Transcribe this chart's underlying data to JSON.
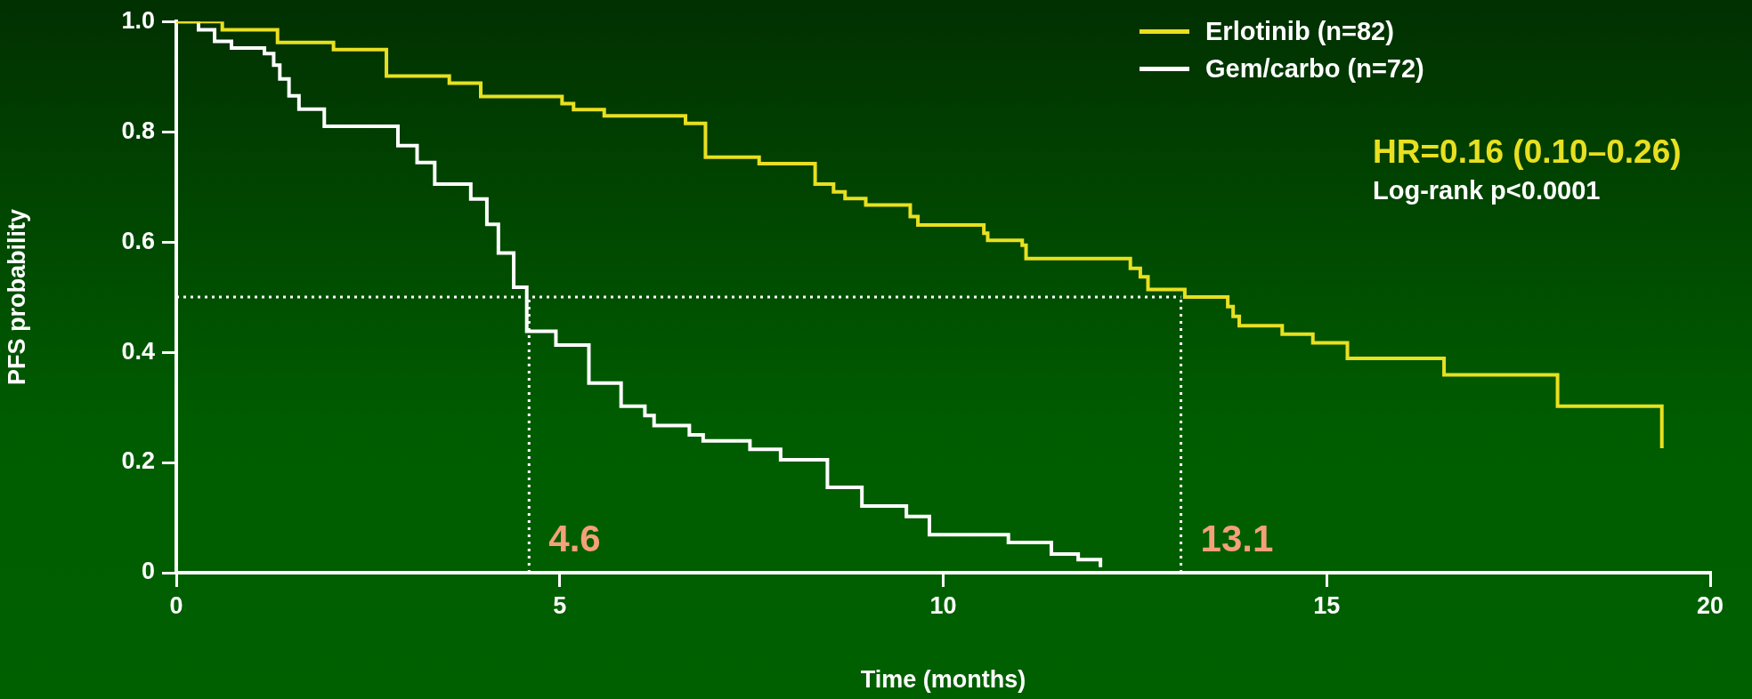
{
  "chart_data": {
    "type": "step",
    "xlabel": "Time (months)",
    "ylabel": "PFS probability",
    "xlim": [
      0,
      20
    ],
    "xticks": [
      0,
      5,
      10,
      15,
      20
    ],
    "ylim": [
      0,
      1
    ],
    "yticks": [
      0,
      0.2,
      0.4,
      0.6,
      0.8,
      {
        "value": 1,
        "label": "1.0"
      }
    ],
    "legend": "top right",
    "series": [
      {
        "name": "Erlotinib (n=82)",
        "color": "#e8e020",
        "x": [
          0,
          0.6,
          1.32,
          2.05,
          2.74,
          3.56,
          3.97,
          5.03,
          5.18,
          5.58,
          6.64,
          6.9,
          7.6,
          8.33,
          8.57,
          8.72,
          8.99,
          9.57,
          9.67,
          10.53,
          10.58,
          11.03,
          11.08,
          12.44,
          12.57,
          12.67,
          13.15,
          13.71,
          13.78,
          13.86,
          14.42,
          14.82,
          15.27,
          16.53,
          18.01,
          19.37
        ],
        "values": [
          1,
          0.985,
          0.962,
          0.949,
          0.901,
          0.888,
          0.864,
          0.851,
          0.84,
          0.829,
          0.815,
          0.754,
          0.742,
          0.705,
          0.691,
          0.679,
          0.667,
          0.646,
          0.631,
          0.616,
          0.603,
          0.594,
          0.57,
          0.552,
          0.537,
          0.514,
          0.5,
          0.483,
          0.465,
          0.448,
          0.433,
          0.417,
          0.389,
          0.359,
          0.302,
          0.226
        ]
      },
      {
        "name": "Gem/carbo (n=72)",
        "color": "#ffffff",
        "x": [
          0,
          0.29,
          0.5,
          0.72,
          1.15,
          1.27,
          1.35,
          1.47,
          1.6,
          1.93,
          2.89,
          3.14,
          3.37,
          3.84,
          4.05,
          4.2,
          4.4,
          4.57,
          4.95,
          5.38,
          5.8,
          6.11,
          6.23,
          6.69,
          6.87,
          7.48,
          7.88,
          8.49,
          8.94,
          9.52,
          9.82,
          10.85,
          11.41,
          11.76,
          12.05
        ],
        "values": [
          1,
          0.985,
          0.964,
          0.952,
          0.942,
          0.921,
          0.896,
          0.865,
          0.841,
          0.81,
          0.775,
          0.744,
          0.705,
          0.678,
          0.632,
          0.58,
          0.518,
          0.438,
          0.413,
          0.344,
          0.302,
          0.285,
          0.267,
          0.25,
          0.239,
          0.224,
          0.205,
          0.155,
          0.121,
          0.102,
          0.069,
          0.055,
          0.034,
          0.024,
          0.01
        ]
      }
    ],
    "ref_lines": [
      {
        "axis": "y",
        "value": 0.5,
        "line_style": "dotted",
        "color": "#ffffff"
      },
      {
        "axis": "x",
        "value": 4.6,
        "label": "4.6",
        "line_style": "dotted",
        "color": "#ffffff"
      },
      {
        "axis": "x",
        "value": 13.1,
        "label": "13.1",
        "line_style": "dotted",
        "color": "#ffffff"
      }
    ],
    "annotations": [
      "HR=0.16 (0.10–0.26)",
      "Log-rank p<0.0001"
    ]
  }
}
